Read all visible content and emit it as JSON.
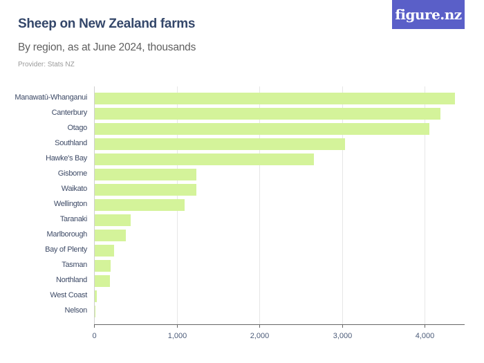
{
  "header": {
    "title": "Sheep on New Zealand farms",
    "subtitle": "By region, as at June 2024, thousands",
    "provider": "Provider: Stats NZ",
    "logo": "figure.nz"
  },
  "colors": {
    "bar": "#d4f39a",
    "title": "#34476a",
    "logo_bg": "#5a5fc8"
  },
  "chart_data": {
    "type": "bar",
    "orientation": "horizontal",
    "title": "Sheep on New Zealand farms",
    "subtitle": "By region, as at June 2024, thousands",
    "xlabel": "",
    "ylabel": "",
    "categories": [
      "Manawatū-Whanganui",
      "Canterbury",
      "Otago",
      "Southland",
      "Hawke's Bay",
      "Gisborne",
      "Waikato",
      "Wellington",
      "Taranaki",
      "Marlborough",
      "Bay of Plenty",
      "Tasman",
      "Northland",
      "West Coast",
      "Nelson"
    ],
    "values": [
      4360,
      4185,
      4050,
      3030,
      2655,
      1230,
      1230,
      1090,
      435,
      375,
      235,
      190,
      185,
      25,
      2
    ],
    "xlim": [
      0,
      4500
    ],
    "xticks": [
      0,
      1000,
      2000,
      3000,
      4000
    ],
    "xtick_labels": [
      "0",
      "1,000",
      "2,000",
      "3,000",
      "4,000"
    ],
    "grid": "vertical",
    "legend": "none"
  }
}
